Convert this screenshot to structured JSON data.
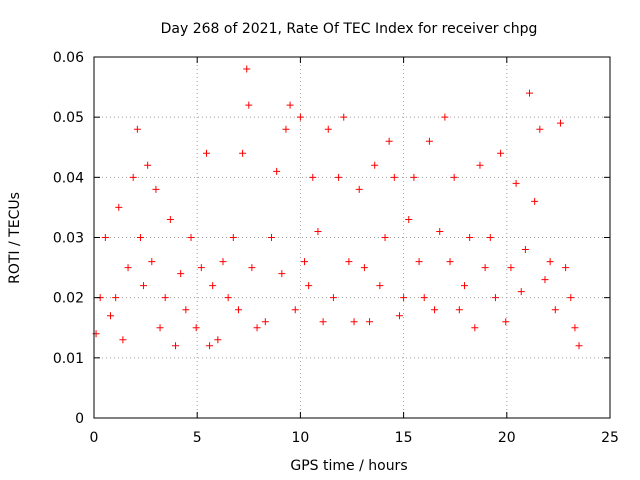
{
  "chart_data": {
    "type": "scatter",
    "title": "Day 268 of 2021, Rate Of TEC Index for receiver chpg",
    "xlabel": "GPS time / hours",
    "ylabel": "ROTI / TECUs",
    "xlim": [
      0,
      25
    ],
    "ylim": [
      0,
      0.06
    ],
    "xticks": [
      0,
      5,
      10,
      15,
      20,
      25
    ],
    "yticks": [
      0,
      0.01,
      0.02,
      0.03,
      0.04,
      0.05,
      0.06
    ],
    "xtick_labels": [
      "0",
      "5",
      "10",
      "15",
      "20",
      "25"
    ],
    "ytick_labels": [
      "0",
      "0.01",
      "0.02",
      "0.03",
      "0.04",
      "0.05",
      "0.06"
    ],
    "grid": true,
    "marker": "plus",
    "color": "#ff0000",
    "series": [
      {
        "x": [
          0.1,
          0.3,
          0.55,
          0.8,
          1.05,
          1.2,
          1.4,
          1.65,
          1.9,
          2.1,
          2.25,
          2.4,
          2.6,
          2.8,
          3.0,
          3.2,
          3.45,
          3.7,
          3.95,
          4.2,
          4.45,
          4.7,
          4.95,
          5.2,
          5.45,
          5.6,
          5.75,
          6.0,
          6.25,
          6.5,
          6.75,
          7.0,
          7.2,
          7.4,
          7.5,
          7.65,
          7.9,
          8.3,
          8.6,
          8.85,
          9.1,
          9.3,
          9.5,
          9.75,
          10.0,
          10.2,
          10.4,
          10.6,
          10.85,
          11.1,
          11.35,
          11.6,
          11.85,
          12.1,
          12.35,
          12.6,
          12.85,
          13.1,
          13.35,
          13.6,
          13.85,
          14.1,
          14.3,
          14.55,
          14.8,
          15.0,
          15.25,
          15.5,
          15.75,
          16.0,
          16.25,
          16.5,
          16.75,
          17.0,
          17.25,
          17.45,
          17.7,
          17.95,
          18.2,
          18.45,
          18.7,
          18.95,
          19.2,
          19.45,
          19.7,
          19.95,
          20.2,
          20.45,
          20.7,
          20.9,
          21.1,
          21.35,
          21.6,
          21.85,
          22.1,
          22.35,
          22.6,
          22.85,
          23.1,
          23.3,
          23.5
        ],
        "y": [
          0.014,
          0.02,
          0.03,
          0.017,
          0.02,
          0.035,
          0.013,
          0.025,
          0.04,
          0.048,
          0.03,
          0.022,
          0.042,
          0.026,
          0.038,
          0.015,
          0.02,
          0.033,
          0.012,
          0.024,
          0.018,
          0.03,
          0.015,
          0.025,
          0.044,
          0.012,
          0.022,
          0.013,
          0.026,
          0.02,
          0.03,
          0.018,
          0.044,
          0.058,
          0.052,
          0.025,
          0.015,
          0.016,
          0.03,
          0.041,
          0.024,
          0.048,
          0.052,
          0.018,
          0.05,
          0.026,
          0.022,
          0.04,
          0.031,
          0.016,
          0.048,
          0.02,
          0.04,
          0.05,
          0.026,
          0.016,
          0.038,
          0.025,
          0.016,
          0.042,
          0.022,
          0.03,
          0.046,
          0.04,
          0.017,
          0.02,
          0.033,
          0.04,
          0.026,
          0.02,
          0.046,
          0.018,
          0.031,
          0.05,
          0.026,
          0.04,
          0.018,
          0.022,
          0.03,
          0.015,
          0.042,
          0.025,
          0.03,
          0.02,
          0.044,
          0.016,
          0.025,
          0.039,
          0.021,
          0.028,
          0.054,
          0.036,
          0.048,
          0.023,
          0.026,
          0.018,
          0.049,
          0.025,
          0.02,
          0.015,
          0.012
        ]
      }
    ]
  }
}
